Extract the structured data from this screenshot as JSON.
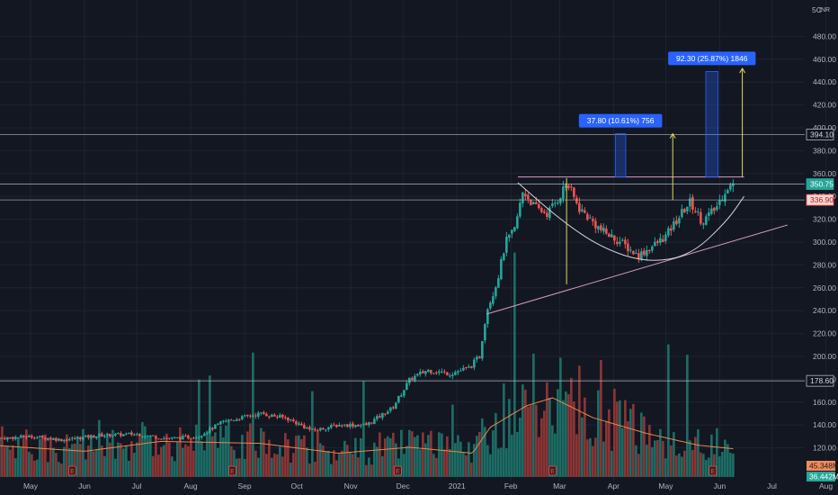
{
  "colors": {
    "background": "#131722",
    "grid": "#1f2330",
    "up": "#26a69a",
    "down": "#ef5350",
    "up_vol": "#1c6e66",
    "down_vol": "#8e3536",
    "ma": "#e8874a",
    "level": "#b2b5be",
    "trend": "#d59cc4",
    "accent": "#2962ff",
    "target": "#e6d85a",
    "tag_green": "#26a69a",
    "tag_red": "#ef5350",
    "tag_vol_down": "#f08a5d"
  },
  "currency_label": "INR",
  "corner_label": "5C",
  "chart_data": {
    "type": "candlestick",
    "title": "",
    "ylim": [
      103,
      500
    ],
    "y_ticks": [
      120,
      140,
      160,
      180,
      200,
      220,
      240,
      260,
      280,
      300,
      320,
      340,
      360,
      380,
      400,
      420,
      440,
      460,
      480
    ],
    "x_ticks": [
      {
        "label": "May",
        "date": "2020-05-01"
      },
      {
        "label": "Jun",
        "date": "2020-06-01"
      },
      {
        "label": "Jul",
        "date": "2020-07-01"
      },
      {
        "label": "Aug",
        "date": "2020-08-01"
      },
      {
        "label": "Sep",
        "date": "2020-09-01"
      },
      {
        "label": "Oct",
        "date": "2020-10-01"
      },
      {
        "label": "Nov",
        "date": "2020-11-01"
      },
      {
        "label": "Dec",
        "date": "2020-12-01"
      },
      {
        "label": "2021",
        "date": "2021-01-01"
      },
      {
        "label": "Feb",
        "date": "2021-02-01"
      },
      {
        "label": "Mar",
        "date": "2021-03-01"
      },
      {
        "label": "Apr",
        "date": "2021-04-01"
      },
      {
        "label": "May",
        "date": "2021-05-01"
      },
      {
        "label": "Jun",
        "date": "2021-06-01"
      },
      {
        "label": "Jul",
        "date": "2021-07-01"
      },
      {
        "label": "Aug",
        "date": "2021-08-01"
      }
    ],
    "price_path": [
      [
        "2020-04-10",
        128
      ],
      [
        "2020-05-01",
        130
      ],
      [
        "2020-05-20",
        127
      ],
      [
        "2020-06-10",
        131
      ],
      [
        "2020-07-01",
        132
      ],
      [
        "2020-07-20",
        128
      ],
      [
        "2020-08-05",
        130
      ],
      [
        "2020-08-20",
        143
      ],
      [
        "2020-09-10",
        150
      ],
      [
        "2020-09-25",
        146
      ],
      [
        "2020-10-10",
        135
      ],
      [
        "2020-10-25",
        140
      ],
      [
        "2020-11-10",
        140
      ],
      [
        "2020-11-25",
        155
      ],
      [
        "2020-12-05",
        180
      ],
      [
        "2020-12-15",
        188
      ],
      [
        "2020-12-28",
        185
      ],
      [
        "2021-01-08",
        190
      ],
      [
        "2021-01-14",
        200
      ],
      [
        "2021-01-18",
        240
      ],
      [
        "2021-01-24",
        265
      ],
      [
        "2021-01-29",
        300
      ],
      [
        "2021-02-03",
        310
      ],
      [
        "2021-02-08",
        345
      ],
      [
        "2021-02-15",
        330
      ],
      [
        "2021-02-22",
        325
      ],
      [
        "2021-03-01",
        340
      ],
      [
        "2021-03-05",
        352
      ],
      [
        "2021-03-12",
        330
      ],
      [
        "2021-03-25",
        310
      ],
      [
        "2021-04-05",
        300
      ],
      [
        "2021-04-15",
        288
      ],
      [
        "2021-04-25",
        298
      ],
      [
        "2021-05-01",
        305
      ],
      [
        "2021-05-10",
        325
      ],
      [
        "2021-05-15",
        335
      ],
      [
        "2021-05-22",
        318
      ],
      [
        "2021-05-30",
        330
      ],
      [
        "2021-06-05",
        348
      ],
      [
        "2021-06-10",
        350.75
      ]
    ],
    "volume_ma_path": [
      [
        "2020-04-10",
        16
      ],
      [
        "2020-06-01",
        13
      ],
      [
        "2020-07-15",
        18
      ],
      [
        "2020-09-10",
        17
      ],
      [
        "2020-10-25",
        12
      ],
      [
        "2020-12-05",
        15
      ],
      [
        "2021-01-10",
        12
      ],
      [
        "2021-01-20",
        25
      ],
      [
        "2021-02-10",
        36
      ],
      [
        "2021-02-25",
        40
      ],
      [
        "2021-03-20",
        30
      ],
      [
        "2021-04-20",
        22
      ],
      [
        "2021-05-20",
        16
      ],
      [
        "2021-06-12",
        14
      ]
    ],
    "price_levels": [
      {
        "value": 394.1,
        "label": "394.10",
        "tag": "level"
      },
      {
        "value": 350.75,
        "label": "350.75",
        "tag": "green"
      },
      {
        "value": 336.9,
        "label": "336.90",
        "tag": "red"
      },
      {
        "value": 178.6,
        "label": "178.60",
        "tag": "level"
      }
    ],
    "volume_tags": [
      {
        "label": "45.348M",
        "color": "tag_vol_down"
      },
      {
        "label": "36.442M",
        "color": "tag_green"
      }
    ],
    "neckline": {
      "value": 357,
      "from": "2021-02-05",
      "to": "2021-06-15"
    },
    "trendline": [
      [
        "2021-01-18",
        237
      ],
      [
        "2021-07-10",
        315
      ]
    ],
    "cup_arc": [
      [
        "2021-02-05",
        352
      ],
      [
        "2021-03-01",
        320
      ],
      [
        "2021-03-25",
        295
      ],
      [
        "2021-04-20",
        282
      ],
      [
        "2021-05-15",
        288
      ],
      [
        "2021-06-05",
        318
      ],
      [
        "2021-06-15",
        340
      ]
    ],
    "projections": [
      {
        "label": "37.80 (10.61%) 756",
        "value": 37.8,
        "percent": 10.61,
        "bars": 756,
        "box_from": "2021-04-02",
        "box_to": "2021-04-08",
        "box_low": 357,
        "box_high": 394.8,
        "arrow_date": "2021-05-05",
        "arrow_from": 337,
        "arrow_to": 394.8
      },
      {
        "label": "92.30 (25.87%) 1846",
        "value": 92.3,
        "percent": 25.87,
        "bars": 1846,
        "box_from": "2021-05-24",
        "box_to": "2021-05-31",
        "box_low": 357,
        "box_high": 449.3,
        "arrow_date": "2021-06-14",
        "arrow_from": 357,
        "arrow_to": 452
      }
    ],
    "earnings_markers": [
      "2020-05-25",
      "2020-08-25",
      "2020-11-28",
      "2021-02-25",
      "2021-05-28"
    ]
  }
}
